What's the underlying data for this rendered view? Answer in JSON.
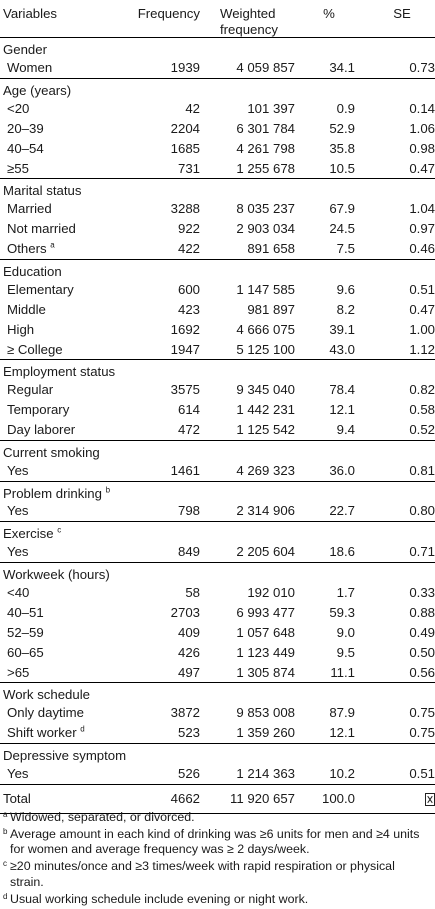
{
  "header": {
    "variables": "Variables",
    "frequency": "Frequency",
    "weighted_line1": "Weighted",
    "weighted_line2": "frequency",
    "percent": "%",
    "se": "SE"
  },
  "groups": [
    {
      "name": "Gender",
      "sup": "",
      "rows": [
        {
          "label": "Women",
          "sup": "",
          "freq": "1939",
          "wfreq": "4 059 857",
          "pct": "34.1",
          "se": "0.73"
        }
      ]
    },
    {
      "name": "Age (years)",
      "sup": "",
      "rows": [
        {
          "label": "<20",
          "sup": "",
          "freq": "42",
          "wfreq": "101 397",
          "pct": "0.9",
          "se": "0.14"
        },
        {
          "label": "20–39",
          "sup": "",
          "freq": "2204",
          "wfreq": "6 301 784",
          "pct": "52.9",
          "se": "1.06"
        },
        {
          "label": "40–54",
          "sup": "",
          "freq": "1685",
          "wfreq": "4 261 798",
          "pct": "35.8",
          "se": "0.98"
        },
        {
          "label": "≥55",
          "sup": "",
          "freq": "731",
          "wfreq": "1 255 678",
          "pct": "10.5",
          "se": "0.47"
        }
      ]
    },
    {
      "name": "Marital status",
      "sup": "",
      "rows": [
        {
          "label": "Married",
          "sup": "",
          "freq": "3288",
          "wfreq": "8 035 237",
          "pct": "67.9",
          "se": "1.04"
        },
        {
          "label": "Not married",
          "sup": "",
          "freq": "922",
          "wfreq": "2 903 034",
          "pct": "24.5",
          "se": "0.97"
        },
        {
          "label": "Others",
          "sup": "a",
          "freq": "422",
          "wfreq": "891 658",
          "pct": "7.5",
          "se": "0.46"
        }
      ]
    },
    {
      "name": "Education",
      "sup": "",
      "rows": [
        {
          "label": "Elementary",
          "sup": "",
          "freq": "600",
          "wfreq": "1 147 585",
          "pct": "9.6",
          "se": "0.51"
        },
        {
          "label": "Middle",
          "sup": "",
          "freq": "423",
          "wfreq": "981 897",
          "pct": "8.2",
          "se": "0.47"
        },
        {
          "label": "High",
          "sup": "",
          "freq": "1692",
          "wfreq": "4 666 075",
          "pct": "39.1",
          "se": "1.00"
        },
        {
          "label": "≥ College",
          "sup": "",
          "freq": "1947",
          "wfreq": "5 125 100",
          "pct": "43.0",
          "se": "1.12"
        }
      ]
    },
    {
      "name": "Employment status",
      "sup": "",
      "rows": [
        {
          "label": "Regular",
          "sup": "",
          "freq": "3575",
          "wfreq": "9 345 040",
          "pct": "78.4",
          "se": "0.82"
        },
        {
          "label": "Temporary",
          "sup": "",
          "freq": "614",
          "wfreq": "1 442 231",
          "pct": "12.1",
          "se": "0.58"
        },
        {
          "label": "Day laborer",
          "sup": "",
          "freq": "472",
          "wfreq": "1 125 542",
          "pct": "9.4",
          "se": "0.52"
        }
      ]
    },
    {
      "name": "Current smoking",
      "sup": "",
      "rows": [
        {
          "label": "Yes",
          "sup": "",
          "freq": "1461",
          "wfreq": "4 269 323",
          "pct": "36.0",
          "se": "0.81"
        }
      ]
    },
    {
      "name": "Problem drinking",
      "sup": "b",
      "rows": [
        {
          "label": "Yes",
          "sup": "",
          "freq": "798",
          "wfreq": "2 314 906",
          "pct": "22.7",
          "se": "0.80"
        }
      ]
    },
    {
      "name": "Exercise",
      "sup": "c",
      "rows": [
        {
          "label": "Yes",
          "sup": "",
          "freq": "849",
          "wfreq": "2 205 604",
          "pct": "18.6",
          "se": "0.71"
        }
      ]
    },
    {
      "name": "Workweek (hours)",
      "sup": "",
      "rows": [
        {
          "label": "<40",
          "sup": "",
          "freq": "58",
          "wfreq": "192 010",
          "pct": "1.7",
          "se": "0.33"
        },
        {
          "label": "40–51",
          "sup": "",
          "freq": "2703",
          "wfreq": "6 993 477",
          "pct": "59.3",
          "se": "0.88"
        },
        {
          "label": "52–59",
          "sup": "",
          "freq": "409",
          "wfreq": "1 057 648",
          "pct": "9.0",
          "se": "0.49"
        },
        {
          "label": "60–65",
          "sup": "",
          "freq": "426",
          "wfreq": "1 123 449",
          "pct": "9.5",
          "se": "0.50"
        },
        {
          "label": ">65",
          "sup": "",
          "freq": "497",
          "wfreq": "1 305 874",
          "pct": "11.1",
          "se": "0.56"
        }
      ]
    },
    {
      "name": "Work schedule",
      "sup": "",
      "rows": [
        {
          "label": "Only daytime",
          "sup": "",
          "freq": "3872",
          "wfreq": "9 853 008",
          "pct": "87.9",
          "se": "0.75"
        },
        {
          "label": "Shift worker",
          "sup": "d",
          "freq": "523",
          "wfreq": "1 359 260",
          "pct": "12.1",
          "se": "0.75"
        }
      ]
    },
    {
      "name": "Depressive symptom",
      "sup": "",
      "rows": [
        {
          "label": "Yes",
          "sup": "",
          "freq": "526",
          "wfreq": "1 214 363",
          "pct": "10.2",
          "se": "0.51"
        }
      ]
    }
  ],
  "total": {
    "label": "Total",
    "freq": "4662",
    "wfreq": "11 920 657",
    "pct": "100.0",
    "se_icon": "missing-glyph-box"
  },
  "footnotes": [
    {
      "mark": "a",
      "text": "Widowed, separated, or divorced."
    },
    {
      "mark": "b",
      "text": "Average amount in each kind of drinking was ≥6 units for men and ≥4 units for women and average frequency was ≥ 2 days/week."
    },
    {
      "mark": "c",
      "text": "≥20 minutes/once and ≥3 times/week with rapid respiration or physical strain."
    },
    {
      "mark": "d",
      "text": "Usual working schedule include evening or night work."
    }
  ]
}
